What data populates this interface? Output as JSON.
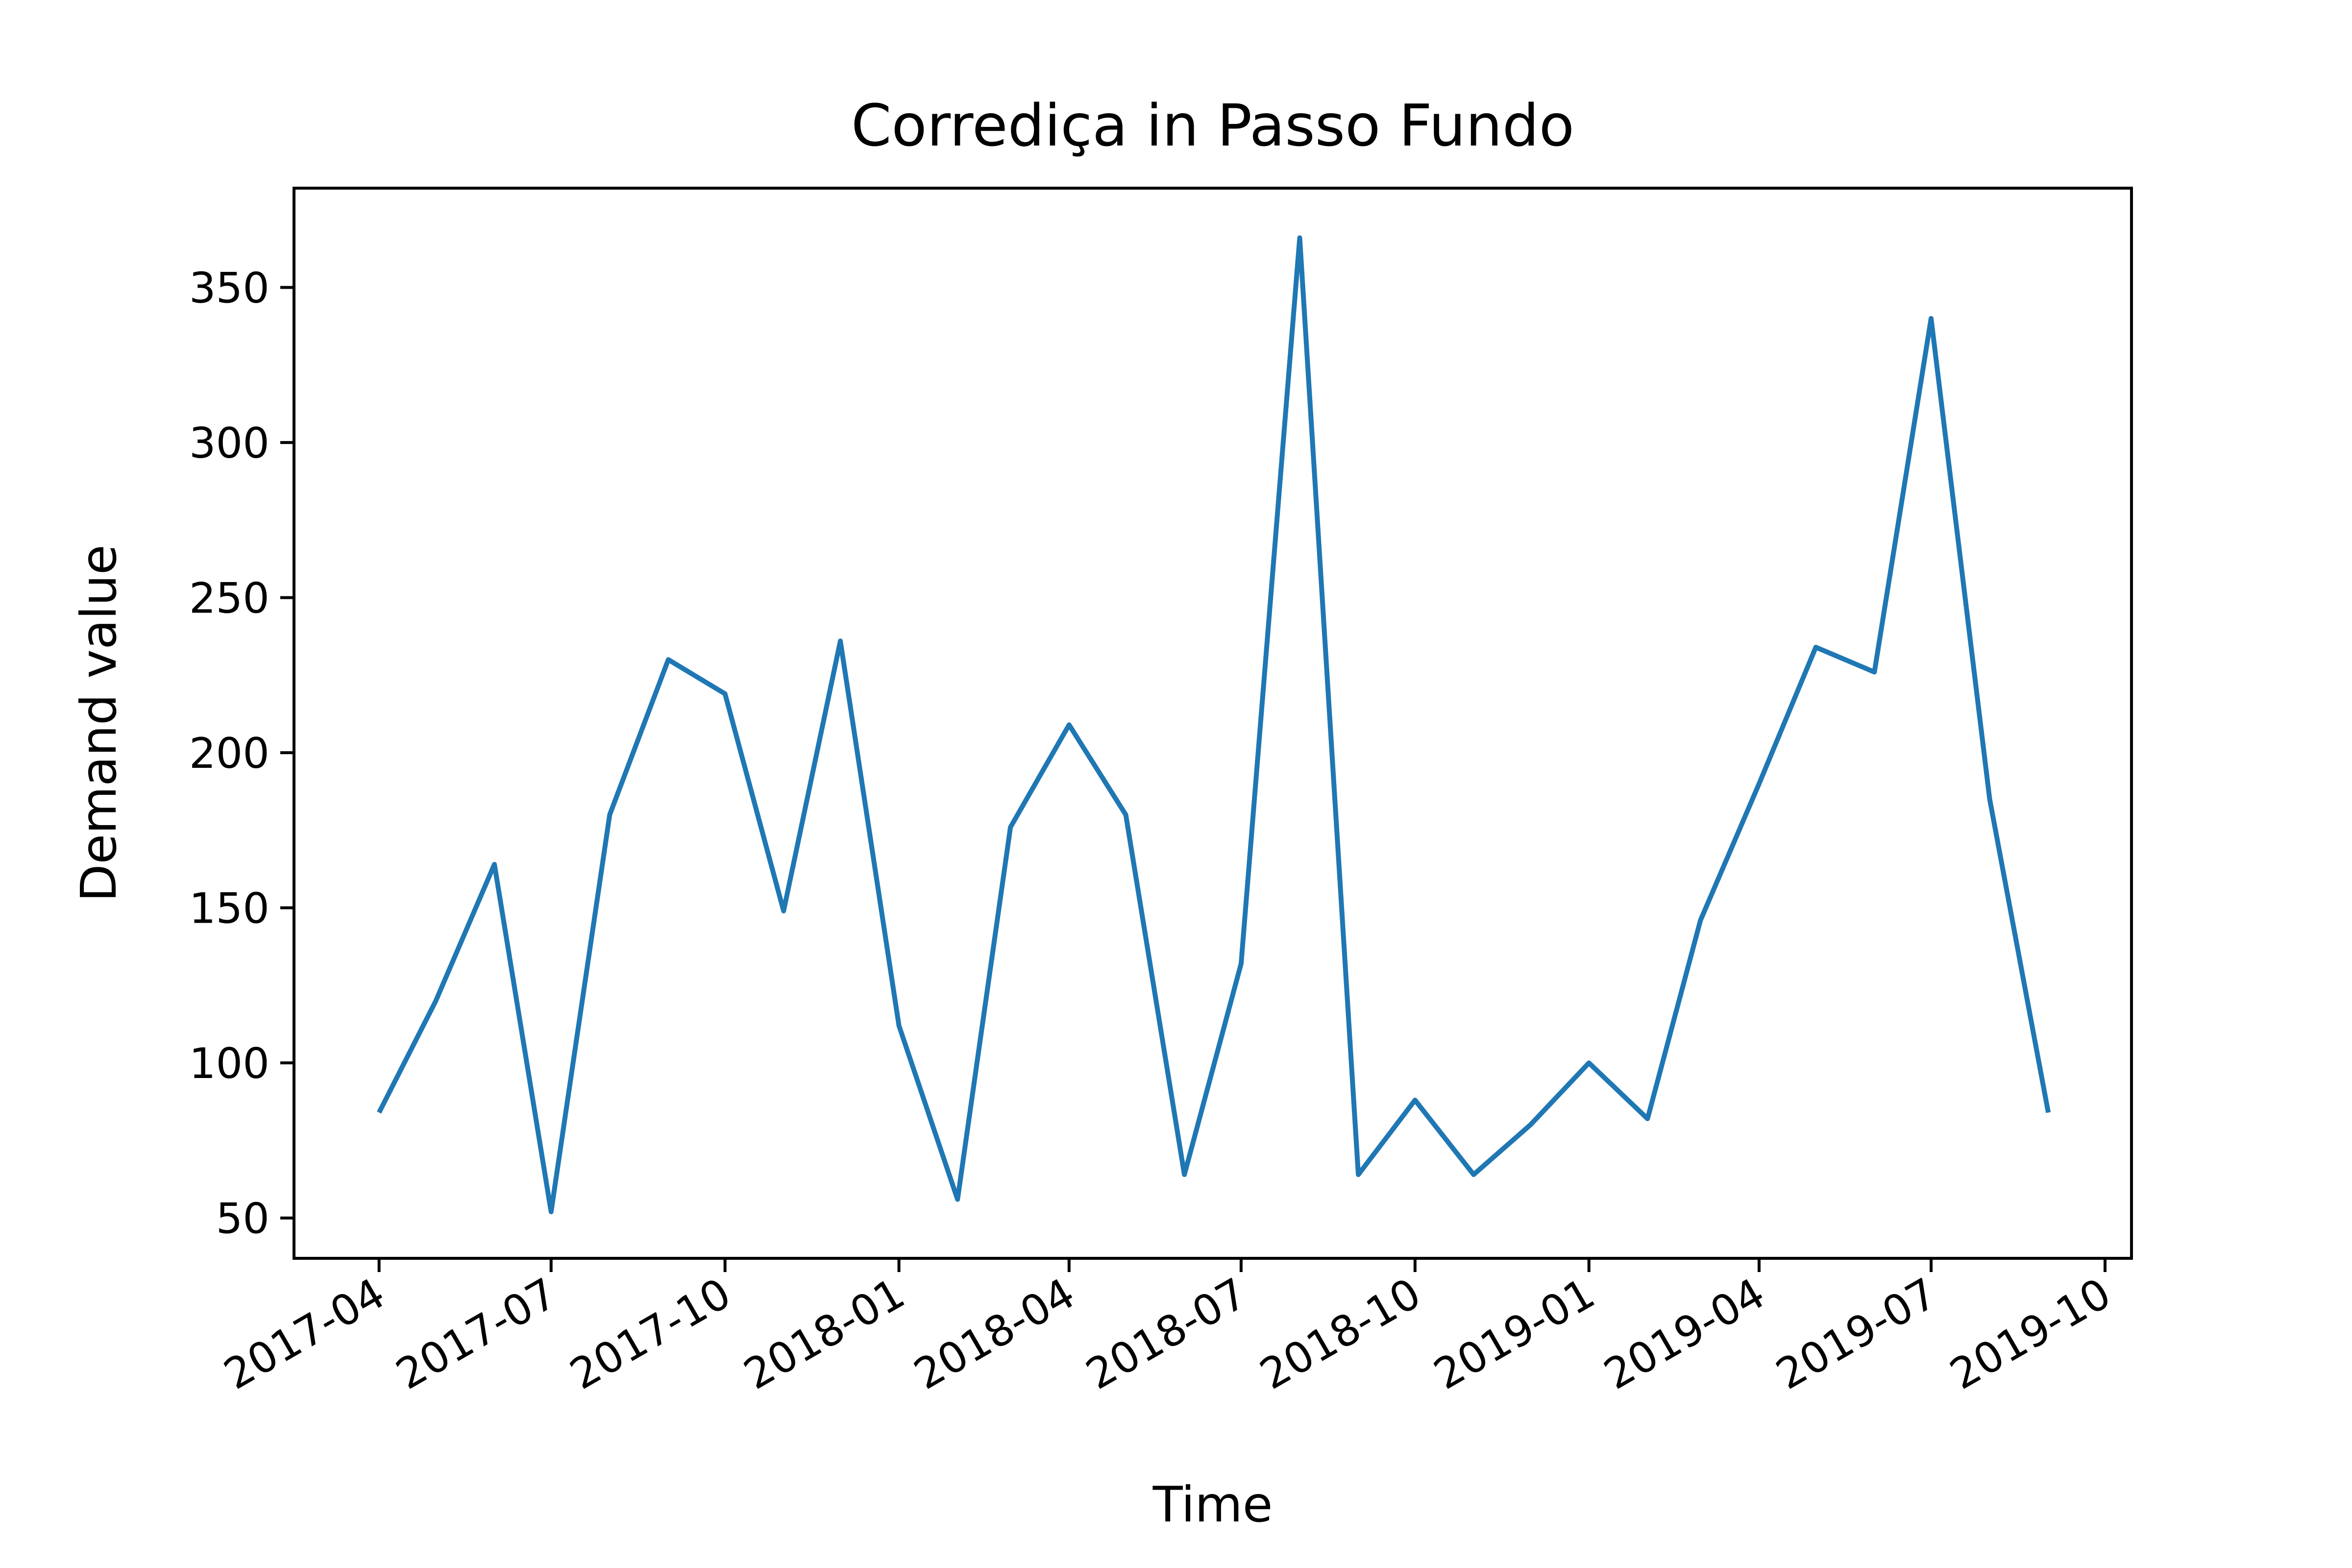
{
  "chart_data": {
    "type": "line",
    "title": "Corrediça in Passo Fundo",
    "xlabel": "Time",
    "ylabel": "Demand value",
    "x_ticks": [
      "2017-04",
      "2017-07",
      "2017-10",
      "2018-01",
      "2018-04",
      "2018-07",
      "2018-10",
      "2019-01",
      "2019-04",
      "2019-07",
      "2019-10"
    ],
    "y_ticks": [
      50,
      100,
      150,
      200,
      250,
      300,
      350
    ],
    "xlim": [
      "2017-02-15",
      "2019-10-15"
    ],
    "ylim": [
      37,
      382
    ],
    "grid": false,
    "line_color": "#1f77b4",
    "series": [
      {
        "x": [
          "2017-04-01",
          "2017-05-01",
          "2017-06-01",
          "2017-07-01",
          "2017-08-01",
          "2017-09-01",
          "2017-10-01",
          "2017-11-01",
          "2017-12-01",
          "2018-01-01",
          "2018-02-01",
          "2018-03-01",
          "2018-04-01",
          "2018-05-01",
          "2018-06-01",
          "2018-07-01",
          "2018-08-01",
          "2018-09-01",
          "2018-10-01",
          "2018-11-01",
          "2018-12-01",
          "2019-01-01",
          "2019-02-01",
          "2019-03-01",
          "2019-04-01",
          "2019-05-01",
          "2019-06-01",
          "2019-07-01",
          "2019-08-01",
          "2019-09-01"
        ],
        "values": [
          84,
          120,
          164,
          52,
          180,
          230,
          219,
          149,
          236,
          112,
          56,
          176,
          209,
          180,
          64,
          132,
          366,
          64,
          88,
          64,
          80,
          100,
          82,
          146,
          190,
          234,
          226,
          340,
          185,
          84
        ]
      }
    ]
  }
}
